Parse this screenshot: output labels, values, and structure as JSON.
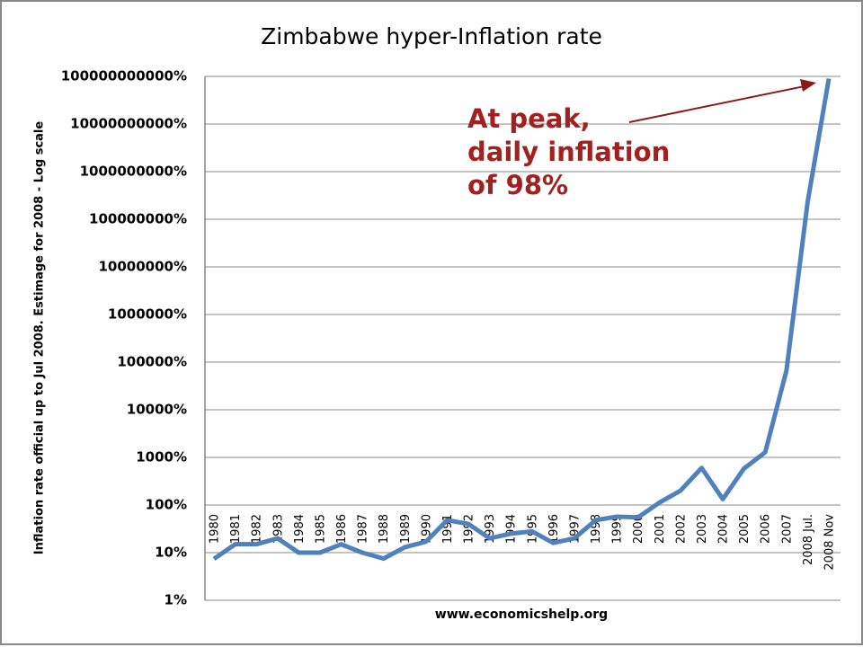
{
  "chart_data": {
    "type": "line",
    "title": "Zimbabwe hyper-Inflation rate",
    "y_label": "Inflation rate official up to Jul 2008. Estimage for 2008 - Log scale",
    "x_label": "www.economicshelp.org",
    "annotation": [
      "At peak,",
      "daily inflation",
      "of 98%"
    ],
    "annotation_color": "#a32020",
    "categories": [
      "1980",
      "1981",
      "1982",
      "1983",
      "1984",
      "1985",
      "1986",
      "1987",
      "1988",
      "1989",
      "1990",
      "1991",
      "1992",
      "1993",
      "1994",
      "1995",
      "1996",
      "1997",
      "1998",
      "1999",
      "2000",
      "2001",
      "2002",
      "2003",
      "2004",
      "2005",
      "2006",
      "2007",
      "2008 Jul.",
      "2008 Nov"
    ],
    "values": [
      7.4,
      15,
      15,
      20,
      10,
      10,
      15,
      10,
      7.5,
      13,
      17,
      48,
      40,
      20,
      25,
      28,
      16,
      20,
      48,
      57,
      55,
      112,
      200,
      600,
      133,
      585,
      1281,
      66212,
      231000000,
      89700000000
    ],
    "color": "#4f81bd",
    "log_scale": true,
    "grid": true,
    "ylim": [
      1,
      100000000000
    ],
    "yticks": [
      {
        "value": 1,
        "label": "1%"
      },
      {
        "value": 10,
        "label": "10%"
      },
      {
        "value": 100,
        "label": "100%"
      },
      {
        "value": 1000,
        "label": "1000%"
      },
      {
        "value": 10000,
        "label": "10000%"
      },
      {
        "value": 100000,
        "label": "100000%"
      },
      {
        "value": 1000000,
        "label": "1000000%"
      },
      {
        "value": 10000000,
        "label": "10000000%"
      },
      {
        "value": 100000000,
        "label": "100000000%"
      },
      {
        "value": 1000000000,
        "label": "1000000000%"
      },
      {
        "value": 10000000000,
        "label": "10000000000%"
      },
      {
        "value": 100000000000,
        "label": "100000000000%"
      }
    ]
  }
}
